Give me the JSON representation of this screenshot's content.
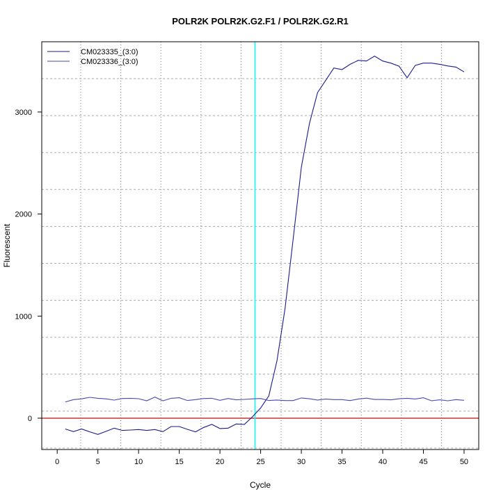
{
  "chart_data": {
    "type": "line",
    "title": "POLR2K  POLR2K.G2.F1 / POLR2K.G2.R1",
    "xlabel": "Cycle",
    "ylabel": "Fluorescent",
    "xlim": [
      -1.9,
      51.8
    ],
    "ylim": [
      -307,
      3688
    ],
    "xticks": [
      0,
      5,
      10,
      15,
      20,
      25,
      30,
      35,
      40,
      45,
      50
    ],
    "yticks": [
      0,
      1000,
      2000,
      3000
    ],
    "grid": true,
    "legend": "top-left",
    "threshold_line": {
      "value": 0,
      "color": "#cc3333"
    },
    "cycle_marker": {
      "value": 24.3,
      "color": "#00ffff"
    },
    "x": [
      1,
      2,
      3,
      4,
      5,
      6,
      7,
      8,
      9,
      10,
      11,
      12,
      13,
      14,
      15,
      16,
      17,
      18,
      19,
      20,
      21,
      22,
      23,
      24,
      25,
      26,
      27,
      28,
      29,
      30,
      31,
      32,
      33,
      34,
      35,
      36,
      37,
      38,
      39,
      40,
      41,
      42,
      43,
      44,
      45,
      46,
      47,
      48,
      49,
      50
    ],
    "series": [
      {
        "name": "CM023335_(3:0)",
        "color": "#1a1a8c",
        "values": [
          -106,
          -132,
          -106,
          -134,
          -159,
          -129,
          -98,
          -120,
          -116,
          -111,
          -120,
          -111,
          -132,
          -82,
          -82,
          -109,
          -134,
          -91,
          -61,
          -102,
          -98,
          -57,
          -61,
          14,
          100,
          218,
          560,
          1077,
          1760,
          2460,
          2890,
          3190,
          3310,
          3431,
          3415,
          3467,
          3506,
          3499,
          3547,
          3499,
          3479,
          3449,
          3335,
          3456,
          3479,
          3479,
          3467,
          3451,
          3440,
          3393
        ]
      },
      {
        "name": "CM023336_(3:0)",
        "color": "#4848b0",
        "values": [
          159,
          182,
          189,
          204,
          195,
          189,
          177,
          193,
          195,
          191,
          170,
          207,
          170,
          195,
          200,
          173,
          182,
          193,
          195,
          175,
          193,
          180,
          184,
          189,
          193,
          173,
          178,
          172,
          172,
          198,
          190,
          178,
          188,
          182,
          182,
          172,
          188,
          196,
          183,
          183,
          180,
          190,
          195,
          188,
          200,
          170,
          180,
          170,
          182,
          175
        ]
      }
    ]
  }
}
